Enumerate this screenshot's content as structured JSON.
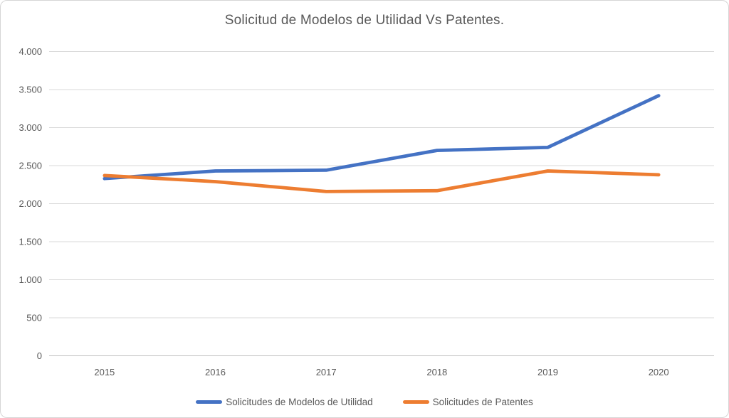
{
  "chart_data": {
    "type": "line",
    "title": "Solicitud de Modelos de Utilidad Vs Patentes.",
    "categories": [
      "2015",
      "2016",
      "2017",
      "2018",
      "2019",
      "2020"
    ],
    "series": [
      {
        "name": "Solicitudes de Modelos de Utilidad",
        "color": "#4472C4",
        "values": [
          2330,
          2430,
          2440,
          2700,
          2740,
          3420
        ]
      },
      {
        "name": "Solicitudes de Patentes",
        "color": "#ED7D31",
        "values": [
          2370,
          2290,
          2160,
          2170,
          2430,
          2380
        ]
      }
    ],
    "xlabel": "",
    "ylabel": "",
    "ylim": [
      0,
      4000
    ],
    "ytick_step": 500,
    "ytick_labels": [
      "0",
      "500",
      "1.000",
      "1.500",
      "2.000",
      "2.500",
      "3.000",
      "3.500",
      "4.000"
    ],
    "grid": true,
    "legend_position": "bottom",
    "colors": {
      "gridline": "#D9D9D9",
      "axisline": "#BFBFBF",
      "text": "#595959"
    }
  }
}
